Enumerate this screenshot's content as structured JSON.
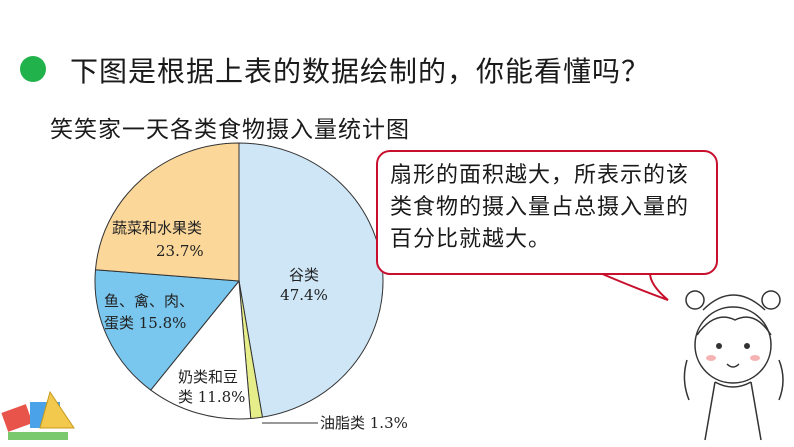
{
  "heading": "下图是根据上表的数据绘制的，你能看懂吗？",
  "bubble_text": "扇形的面积越大，所表示的该类食物的摄入量占总摄入量的百分比就越大。",
  "chart_data": {
    "type": "pie",
    "title": "笑笑家一天各类食物摄入量统计图",
    "slices": [
      {
        "name": "谷类",
        "value": 47.4,
        "label": "47.4%",
        "color": "#cfe6f7"
      },
      {
        "name": "油脂类",
        "value": 1.3,
        "label": "1.3%",
        "color": "#e6ee8a"
      },
      {
        "name": "奶类和豆类",
        "value": 11.8,
        "label": "11.8%",
        "color": "#ffffff"
      },
      {
        "name": "鱼、禽、肉、蛋类",
        "value": 15.8,
        "label": "15.8%",
        "color": "#79c7ef"
      },
      {
        "name": "蔬菜和水果类",
        "value": 23.7,
        "label": "23.7%",
        "color": "#fbd79a"
      }
    ],
    "label_text": {
      "grain_name": "谷类",
      "grain_pct": "47.4%",
      "oil": "油脂类 1.3%",
      "dairy_line1": "奶类和豆",
      "dairy_line2": "类 11.8%",
      "meat_line1": "鱼、禽、肉、",
      "meat_line2": "蛋类 15.8%",
      "veg_line1": "蔬菜和水果类",
      "veg_line2": "23.7%"
    }
  },
  "icons": {
    "bullet": "green-dot-icon",
    "girl": "girl-cartoon-icon",
    "stationery": "stationery-icon"
  }
}
